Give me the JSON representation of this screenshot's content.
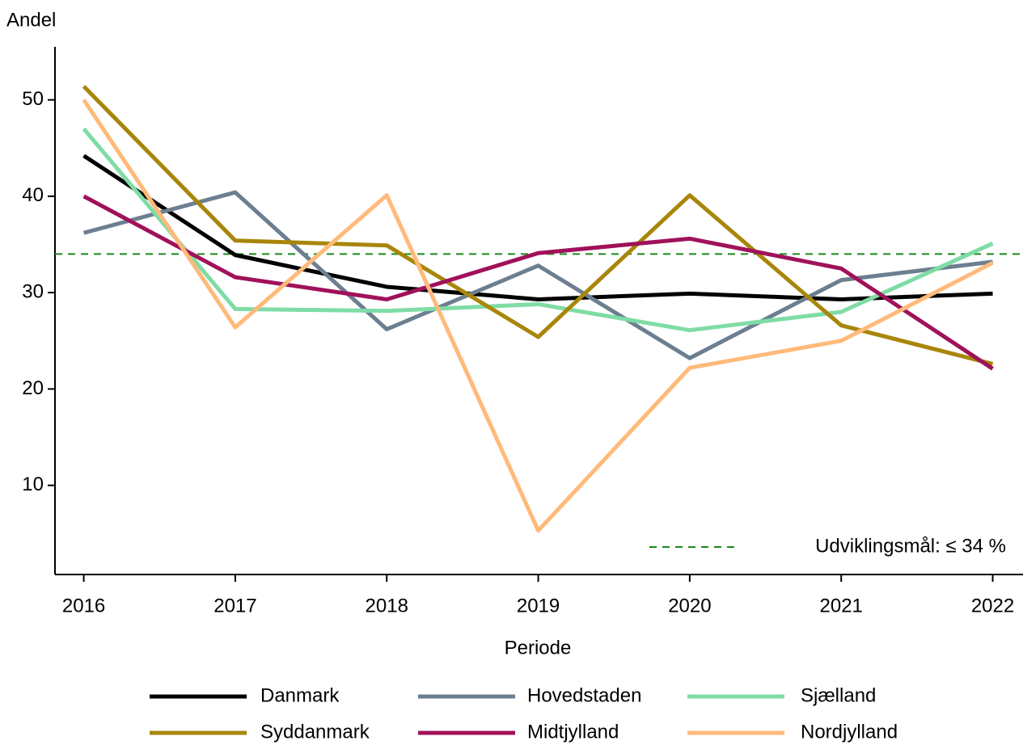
{
  "chart_data": {
    "type": "line",
    "y_label": "Andel",
    "x_label": "Periode",
    "x": [
      2016,
      2017,
      2018,
      2019,
      2020,
      2021,
      2022
    ],
    "xlim": [
      2015.81,
      2022.2
    ],
    "xticks": [
      2016,
      2017,
      2018,
      2019,
      2020,
      2021,
      2022
    ],
    "ylim": [
      0.75,
      55.5
    ],
    "yticks": [
      10,
      20,
      30,
      40,
      50
    ],
    "series": [
      {
        "name": "Danmark",
        "color": "#000000",
        "values": [
          44.2,
          33.9,
          30.6,
          29.3,
          29.9,
          29.3,
          29.9
        ]
      },
      {
        "name": "Hovedstaden",
        "color": "#6c7f90",
        "values": [
          36.2,
          40.4,
          26.2,
          32.8,
          23.2,
          31.3,
          33.2
        ]
      },
      {
        "name": "Sjælland",
        "color": "#7fdca5",
        "values": [
          47.0,
          28.3,
          28.1,
          28.8,
          26.1,
          28.0,
          35.1
        ]
      },
      {
        "name": "Syddanmark",
        "color": "#a8860a",
        "values": [
          51.4,
          35.4,
          34.9,
          25.4,
          40.1,
          26.6,
          22.6
        ]
      },
      {
        "name": "Midtjylland",
        "color": "#a0115a",
        "values": [
          40.0,
          31.6,
          29.3,
          34.1,
          35.6,
          32.5,
          22.1
        ]
      },
      {
        "name": "Nordjylland",
        "color": "#ffba7a",
        "values": [
          50.0,
          26.4,
          40.1,
          5.3,
          22.2,
          25.0,
          33.1
        ]
      }
    ],
    "target": {
      "value": 34,
      "label": "Udviklingsmål: ≤ 34 %",
      "color": "#1a8a1a"
    },
    "legend": "bottom"
  }
}
